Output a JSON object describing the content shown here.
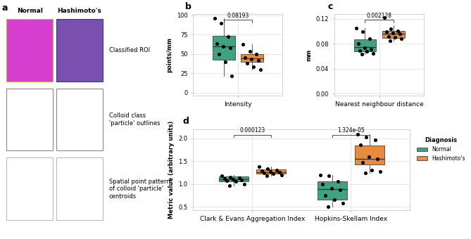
{
  "panel_a": {
    "panel_label": "a",
    "columns": [
      "Normal",
      "Hashimoto's"
    ],
    "rows": [
      "Classified ROI",
      "Colloid class\n'particle' outlines",
      "Spatial point pattern\nof colloid 'particle'\ncentroids"
    ]
  },
  "chart_data": [
    {
      "type": "box",
      "panel_label": "b",
      "categories": [
        "Intensity"
      ],
      "y_label": "points/mm",
      "ylim": [
        -4,
        101
      ],
      "yticks": [
        0,
        25,
        50,
        75,
        100
      ],
      "grid": true,
      "series": [
        {
          "name": "Normal",
          "color": "#3fa281",
          "boxes": [
            {
              "whislo": 21,
              "q1": 42,
              "median": 60,
              "q3": 73,
              "whishi": 96
            }
          ],
          "values": [
            [
              96,
              90,
              72,
              63,
              60,
              58,
              50,
              40,
              21
            ]
          ]
        },
        {
          "name": "Hashimoto's",
          "color": "#e98a3c",
          "boxes": [
            {
              "whislo": 30,
              "q1": 40,
              "median": 44,
              "q3": 50,
              "whishi": 62
            }
          ],
          "values": [
            [
              62,
              53,
              50,
              45,
              43,
              41,
              38,
              33,
              30
            ]
          ]
        }
      ],
      "annotations": [
        {
          "category": "Intensity",
          "text": "0.08193"
        }
      ]
    },
    {
      "type": "box",
      "panel_label": "c",
      "categories": [
        "Nearest neighbour distance"
      ],
      "y_label": "mm",
      "ylim": [
        -0.003,
        0.127
      ],
      "yticks": [
        {
          "value": 0,
          "label": "0.00"
        },
        {
          "value": 0.04,
          "label": "0.04"
        },
        {
          "value": 0.08,
          "label": "0.08"
        },
        {
          "value": 0.12,
          "label": "0.12"
        }
      ],
      "grid": true,
      "series": [
        {
          "name": "Normal",
          "color": "#3fa281",
          "boxes": [
            {
              "whislo": 0.063,
              "q1": 0.068,
              "median": 0.075,
              "q3": 0.087,
              "whishi": 0.105
            }
          ],
          "values": [
            [
              0.105,
              0.099,
              0.088,
              0.08,
              0.074,
              0.071,
              0.069,
              0.068,
              0.065,
              0.063
            ]
          ]
        },
        {
          "name": "Hashimoto's",
          "color": "#e98a3c",
          "boxes": [
            {
              "whislo": 0.085,
              "q1": 0.089,
              "median": 0.096,
              "q3": 0.1,
              "whishi": 0.11
            }
          ],
          "values": [
            [
              0.122,
              0.104,
              0.1,
              0.099,
              0.097,
              0.096,
              0.092,
              0.09,
              0.088,
              0.085
            ]
          ]
        }
      ],
      "annotations": [
        {
          "category": "Nearest neighbour distance",
          "text": "0.002128"
        }
      ]
    },
    {
      "type": "box",
      "panel_label": "d",
      "categories": [
        "Clark & Evans Aggregation Index",
        "Hopkins-Skellam Index"
      ],
      "y_label": "Metric value (arbitrary units)",
      "ylim": [
        0.42,
        2.2
      ],
      "yticks": [
        {
          "value": 0.5,
          "label": "0.5"
        },
        {
          "value": 1.0,
          "label": "1.0"
        },
        {
          "value": 1.5,
          "label": "1.5"
        },
        {
          "value": 2.0,
          "label": "2.0"
        }
      ],
      "grid": true,
      "legend": "right",
      "legend_title": "Diagnosis",
      "series": [
        {
          "name": "Normal",
          "color": "#3fa281",
          "boxes": [
            {
              "whislo": 0.96,
              "q1": 1.06,
              "median": 1.1,
              "q3": 1.16,
              "whishi": 1.2
            },
            {
              "whislo": 0.5,
              "q1": 0.65,
              "median": 0.88,
              "q3": 1.05,
              "whishi": 1.19
            }
          ],
          "values": [
            [
              1.18,
              1.15,
              1.13,
              1.12,
              1.1,
              1.09,
              1.07,
              1.05,
              1.0,
              0.96
            ],
            [
              1.19,
              1.17,
              1.05,
              0.99,
              0.9,
              0.87,
              0.75,
              0.65,
              0.57,
              0.5
            ]
          ]
        },
        {
          "name": "Hashimoto's",
          "color": "#e98a3c",
          "boxes": [
            {
              "whislo": 1.17,
              "q1": 1.22,
              "median": 1.26,
              "q3": 1.31,
              "whishi": 1.38
            },
            {
              "whislo": 1.24,
              "q1": 1.42,
              "median": 1.55,
              "q3": 1.84,
              "whishi": 2.09
            }
          ],
          "values": [
            [
              1.38,
              1.33,
              1.3,
              1.28,
              1.27,
              1.26,
              1.24,
              1.22,
              1.2,
              1.17
            ],
            [
              2.09,
              2.03,
              1.97,
              1.85,
              1.6,
              1.55,
              1.47,
              1.3,
              1.27,
              1.24
            ]
          ]
        }
      ],
      "annotations": [
        {
          "category": "Clark & Evans Aggregation Index",
          "text": "0.000123"
        },
        {
          "category": "Hopkins-Skellam Index",
          "text": "1.324e-05"
        }
      ]
    }
  ]
}
